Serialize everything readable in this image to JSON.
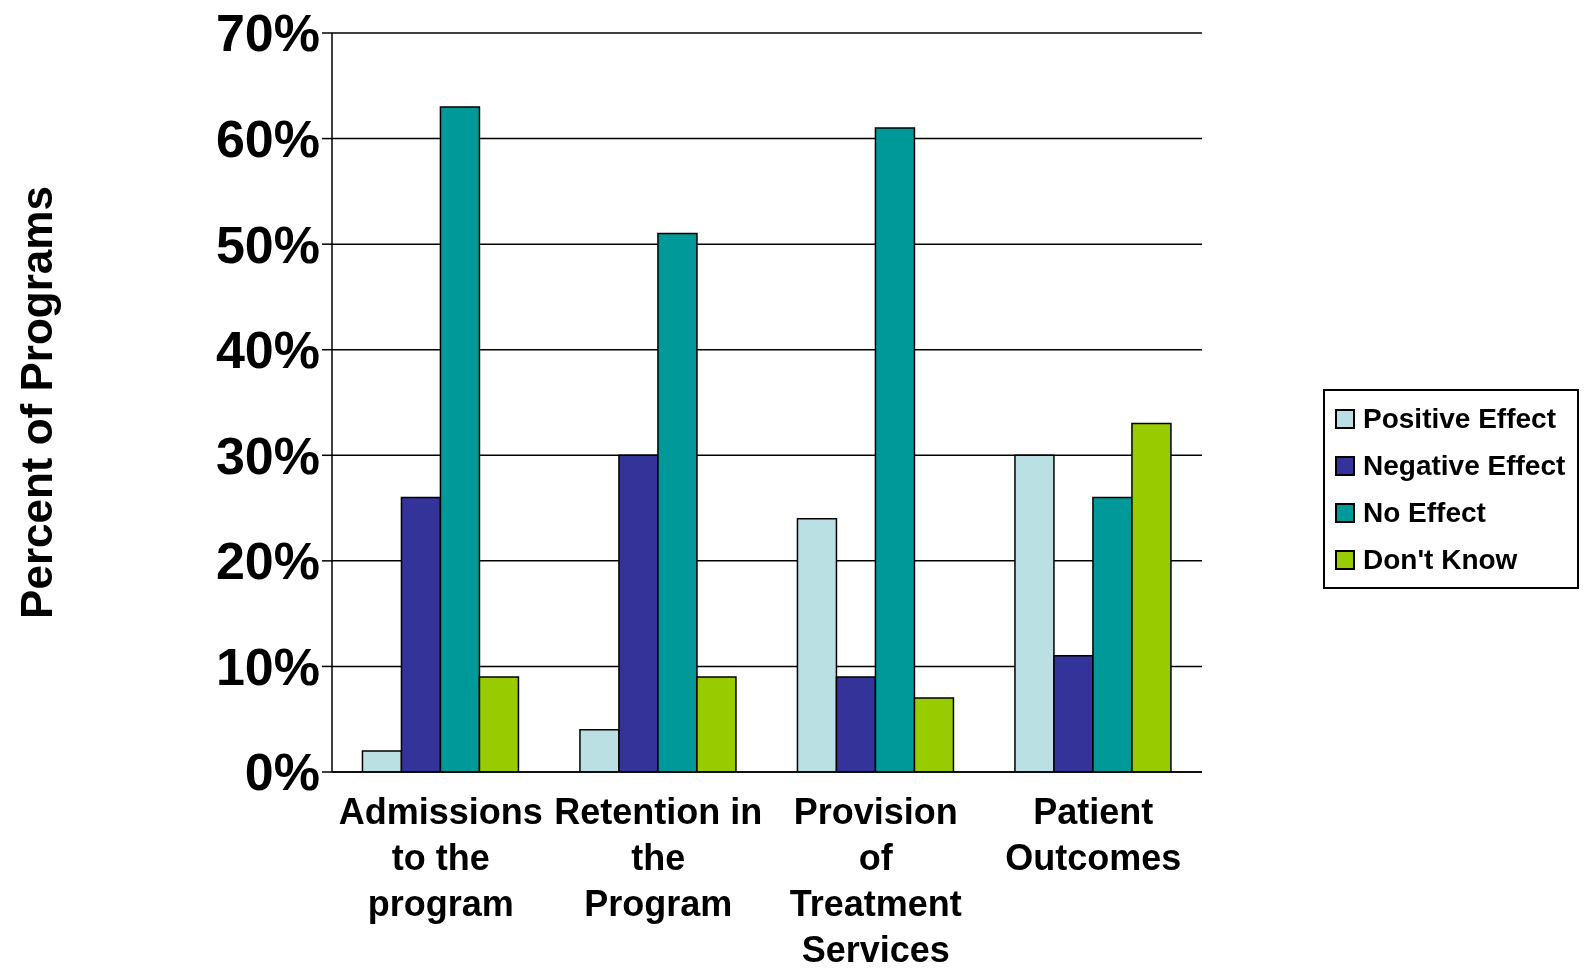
{
  "chart_data": {
    "type": "bar",
    "ylabel": "Percent of Programs",
    "categories": [
      "Admissions\nto the\nprogram",
      "Retention in\nthe\nProgram",
      "Provision\nof\nTreatment\nServices",
      "Patient\nOutcomes"
    ],
    "series": [
      {
        "name": "Positive Effect",
        "color": "#bbe0e3",
        "values": [
          2,
          4,
          24,
          30
        ]
      },
      {
        "name": "Negative Effect",
        "color": "#333399",
        "values": [
          26,
          30,
          9,
          11
        ]
      },
      {
        "name": "No Effect",
        "color": "#009999",
        "values": [
          63,
          51,
          61,
          26
        ]
      },
      {
        "name": "Don't Know",
        "color": "#99cc00",
        "values": [
          9,
          9,
          7,
          33
        ]
      }
    ],
    "ylim": [
      0,
      70
    ],
    "yticks": [
      {
        "value": 0,
        "label": "0%"
      },
      {
        "value": 10,
        "label": "10%"
      },
      {
        "value": 20,
        "label": "20%"
      },
      {
        "value": 30,
        "label": "30%"
      },
      {
        "value": 40,
        "label": "40%"
      },
      {
        "value": 50,
        "label": "50%"
      },
      {
        "value": 60,
        "label": "60%"
      },
      {
        "value": 70,
        "label": "70%"
      }
    ],
    "grid": "y",
    "legend": "right"
  }
}
